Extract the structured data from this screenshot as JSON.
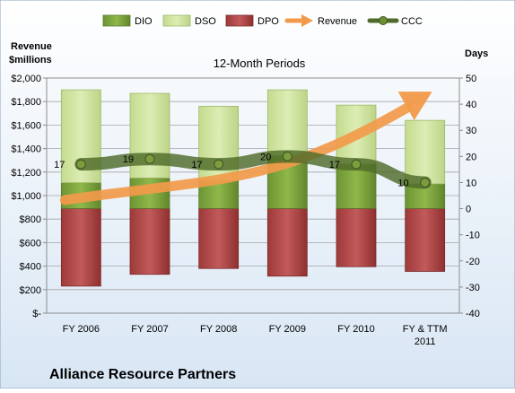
{
  "chart_data": {
    "type": "bar",
    "title": "12-Month Periods",
    "company": "Alliance Resource Partners",
    "left_axis": {
      "label_line1": "Revenue",
      "label_line2": "$millions",
      "ylim": [
        0,
        2000
      ],
      "ticks": [
        "$-",
        "$200",
        "$400",
        "$600",
        "$800",
        "$1,000",
        "$1,200",
        "$1,400",
        "$1,600",
        "$1,800",
        "$2,000"
      ]
    },
    "right_axis": {
      "label": "Days",
      "ylim": [
        -40,
        50
      ],
      "ticks": [
        "-40",
        "-30",
        "-20",
        "-10",
        "0",
        "10",
        "20",
        "30",
        "40",
        "50"
      ]
    },
    "categories": [
      {
        "line1": "FY 2006",
        "line2": ""
      },
      {
        "line1": "FY 2007",
        "line2": ""
      },
      {
        "line1": "FY 2008",
        "line2": ""
      },
      {
        "line1": "FY 2009",
        "line2": ""
      },
      {
        "line1": "FY 2010",
        "line2": ""
      },
      {
        "line1": "FY & TTM",
        "line2": "2011"
      }
    ],
    "legend_position": "top",
    "legend": [
      {
        "key": "dio",
        "name": "DIO",
        "kind": "box"
      },
      {
        "key": "dso",
        "name": "DSO",
        "kind": "box"
      },
      {
        "key": "dpo",
        "name": "DPO",
        "kind": "box"
      },
      {
        "key": "revenue",
        "name": "Revenue",
        "kind": "arrow"
      },
      {
        "key": "ccc",
        "name": "CCC",
        "kind": "line"
      }
    ],
    "colors": {
      "dio": "#7fa63c",
      "dso": "#cfe3a0",
      "dpo": "#b24b4b",
      "revenue": "#f29a4a",
      "ccc": "#4f6b2a",
      "background": "#ffffff"
    },
    "series": {
      "dpo_bottom_usd": [
        230,
        330,
        380,
        315,
        395,
        355
      ],
      "dpo_top_usd": [
        890,
        890,
        890,
        890,
        890,
        890
      ],
      "dio_top_usd": [
        1110,
        1150,
        1130,
        1340,
        1270,
        1100
      ],
      "dso_top_usd": [
        1900,
        1870,
        1760,
        1900,
        1770,
        1640
      ],
      "revenue_usd": [
        1000,
        null,
        null,
        null,
        null,
        1900
      ],
      "ccc_days": [
        17,
        19,
        17,
        20,
        17,
        10
      ],
      "ccc_labels": [
        "17",
        "19",
        "17",
        "20",
        "17",
        "10"
      ]
    },
    "grid": true
  }
}
